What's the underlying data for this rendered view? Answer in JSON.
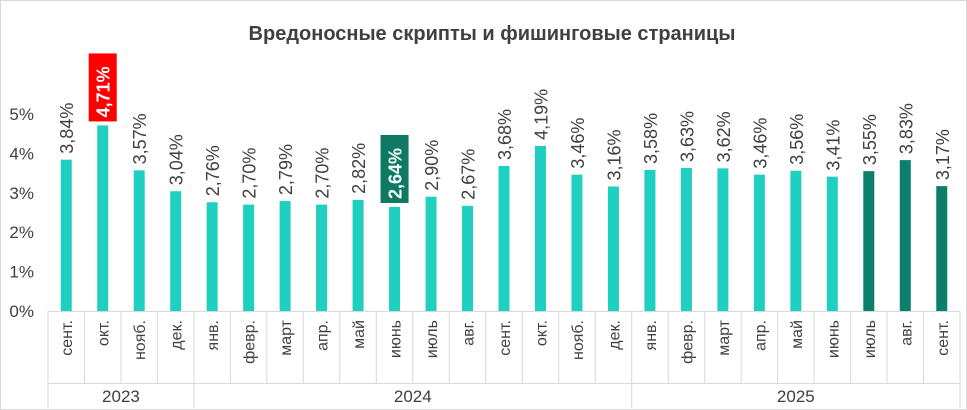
{
  "chart_data": {
    "type": "bar",
    "title": "Вредоносные скрипты и фишинговые страницы",
    "xlabel": "",
    "ylabel": "",
    "ylim": [
      0,
      5
    ],
    "yticks": [
      "0%",
      "1%",
      "2%",
      "3%",
      "4%",
      "5%"
    ],
    "grid": false,
    "legend": "none",
    "categories": [
      "сент.",
      "окт.",
      "нояб.",
      "дек.",
      "янв.",
      "февр.",
      "март",
      "апр.",
      "май",
      "июнь",
      "июль",
      "авг.",
      "сент.",
      "окт.",
      "нояб.",
      "дек.",
      "янв.",
      "февр.",
      "март",
      "апр.",
      "май",
      "июнь",
      "июль",
      "авг.",
      "сент."
    ],
    "values": [
      3.84,
      4.71,
      3.57,
      3.04,
      2.76,
      2.7,
      2.79,
      2.7,
      2.82,
      2.64,
      2.9,
      2.67,
      3.68,
      4.19,
      3.46,
      3.16,
      3.58,
      3.63,
      3.62,
      3.46,
      3.56,
      3.41,
      3.55,
      3.83,
      3.17
    ],
    "data_labels": [
      "3,84%",
      "4,71%",
      "3,57%",
      "3,04%",
      "2,76%",
      "2,70%",
      "2,79%",
      "2,70%",
      "2,82%",
      "2,64%",
      "2,90%",
      "2,67%",
      "3,68%",
      "4,19%",
      "3,46%",
      "3,16%",
      "3,58%",
      "3,63%",
      "3,62%",
      "3,46%",
      "3,56%",
      "3,41%",
      "3,55%",
      "3,83%",
      "3,17%"
    ],
    "years": [
      {
        "label": "2023",
        "start": 0,
        "end": 3
      },
      {
        "label": "2024",
        "start": 4,
        "end": 15
      },
      {
        "label": "2025",
        "start": 16,
        "end": 24
      }
    ],
    "highlight_max_index": 1,
    "highlight_min_index": 9,
    "dark_bar_indices": [
      22,
      23,
      24
    ],
    "colors": {
      "bar": "#1fcfbf",
      "bar_dark": "#0b7f6b",
      "highlight_max_bg": "#ff0000",
      "highlight_min_bg": "#0f7a64",
      "text": "#404040",
      "axis": "#d9d9d9"
    }
  }
}
